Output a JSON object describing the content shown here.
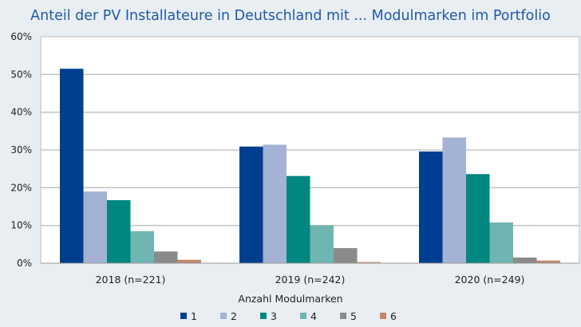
{
  "chart_data": {
    "type": "bar",
    "title": "Anteil der PV Installateure in Deutschland mit ... Modulmarken im Portfolio",
    "xlabel": "",
    "ylabel": "",
    "categories": [
      "2018 (n=221)",
      "2019 (n=242)",
      "2020 (n=249)"
    ],
    "ylim": [
      0,
      60
    ],
    "yticks": [
      "0%",
      "10%",
      "20%",
      "30%",
      "40%",
      "50%",
      "60%"
    ],
    "grid": true,
    "legend_title": "Anzahl Modulmarken",
    "legend_position": "bottom",
    "series": [
      {
        "name": "1",
        "color": "#003f8f",
        "values": [
          51.5,
          30.9,
          29.6
        ]
      },
      {
        "name": "2",
        "color": "#a4b3d4",
        "values": [
          19.0,
          31.4,
          33.3
        ]
      },
      {
        "name": "3",
        "color": "#00877f",
        "values": [
          16.7,
          23.1,
          23.6
        ]
      },
      {
        "name": "4",
        "color": "#6fb5b2",
        "values": [
          8.5,
          10.0,
          10.8
        ]
      },
      {
        "name": "5",
        "color": "#8a8a8a",
        "values": [
          3.1,
          4.0,
          1.5
        ]
      },
      {
        "name": "6",
        "color": "#c4876b",
        "values": [
          0.9,
          0.3,
          0.7
        ]
      }
    ]
  }
}
